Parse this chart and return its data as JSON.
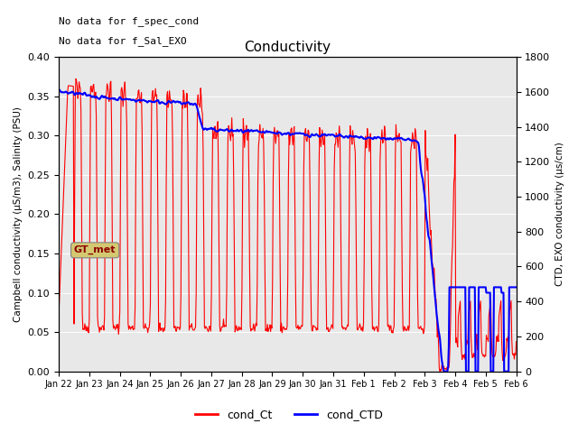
{
  "title": "Conductivity",
  "ylabel_left": "Campbell conductivity (µS/m3), Salinity (PSU)",
  "ylabel_right": "CTD, EXO conductivity (µs/cm)",
  "ylim_left": [
    0.0,
    0.4
  ],
  "ylim_right": [
    0,
    1800
  ],
  "yticks_left": [
    0.0,
    0.05,
    0.1,
    0.15,
    0.2,
    0.25,
    0.3,
    0.35,
    0.4
  ],
  "yticks_right": [
    0,
    200,
    400,
    600,
    800,
    1000,
    1200,
    1400,
    1600,
    1800
  ],
  "text_line1": "No data for f_spec_cond",
  "text_line2": "No data for f_Sal_EXO",
  "gt_met_label": "GT_met",
  "legend_label_ct": "cond_Ct",
  "legend_label_ctd": "cond_CTD",
  "color_ct": "red",
  "color_ctd": "blue",
  "plot_bg": "#e8e8e8",
  "fig_bg": "#ffffff",
  "gt_met_bg": "#d4c970",
  "gt_met_text": "darkred",
  "xticklabels": [
    "Jan 22",
    "Jan 23",
    "Jan 24",
    "Jan 25",
    "Jan 26",
    "Jan 27",
    "Jan 28",
    "Jan 29",
    "Jan 30",
    "Jan 31",
    "Feb 1",
    "Feb 2",
    "Feb 3",
    "Feb 4",
    "Feb 5",
    "Feb 6"
  ],
  "xlim_days": 15
}
